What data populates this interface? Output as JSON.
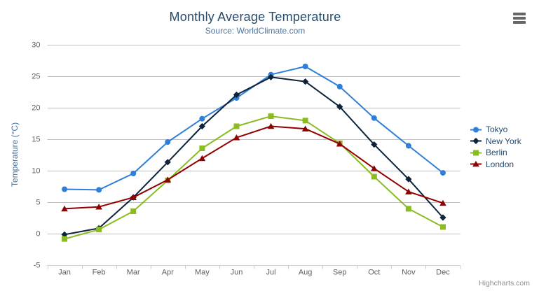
{
  "chart_data": {
    "type": "line",
    "title": "Monthly Average Temperature",
    "subtitle": "Source: WorldClimate.com",
    "categories": [
      "Jan",
      "Feb",
      "Mar",
      "Apr",
      "May",
      "Jun",
      "Jul",
      "Aug",
      "Sep",
      "Oct",
      "Nov",
      "Dec"
    ],
    "xlabel": "",
    "ylabel": "Temperature (°C)",
    "ylim": [
      -5,
      30
    ],
    "yticks": [
      -5,
      0,
      5,
      10,
      15,
      20,
      25,
      30
    ],
    "grid": true,
    "legend_position": "right-middle-vertical",
    "series": [
      {
        "name": "Tokyo",
        "color": "#2f7ed8",
        "marker": "circle",
        "values": [
          7.0,
          6.9,
          9.5,
          14.5,
          18.2,
          21.5,
          25.2,
          26.5,
          23.3,
          18.3,
          13.9,
          9.6
        ]
      },
      {
        "name": "New York",
        "color": "#0d233a",
        "marker": "diamond",
        "values": [
          -0.2,
          0.8,
          5.7,
          11.3,
          17.0,
          22.0,
          24.8,
          24.1,
          20.1,
          14.1,
          8.6,
          2.5
        ]
      },
      {
        "name": "Berlin",
        "color": "#8bbc21",
        "marker": "square",
        "values": [
          -0.9,
          0.6,
          3.5,
          8.4,
          13.5,
          17.0,
          18.6,
          17.9,
          14.3,
          9.0,
          3.9,
          1.0
        ]
      },
      {
        "name": "London",
        "color": "#910000",
        "marker": "triangle",
        "values": [
          3.9,
          4.2,
          5.7,
          8.5,
          11.9,
          15.2,
          17.0,
          16.6,
          14.2,
          10.3,
          6.6,
          4.8
        ]
      }
    ],
    "credits": "Highcharts.com"
  },
  "styles": {
    "title_color": "#274b6d",
    "subtitle_color": "#4d759e",
    "axis_label_color": "#606060",
    "axis_title_color": "#4572a7",
    "gridline_color": "#c0c0c0",
    "axis_line_color": "#c0d0e0",
    "legend_text_color": "#274b6d",
    "credits_color": "#909090"
  }
}
